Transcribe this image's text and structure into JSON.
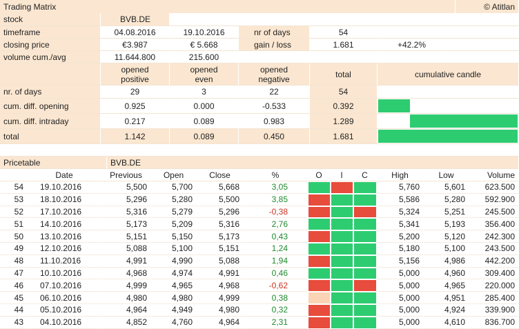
{
  "header": {
    "title": "Trading Matrix",
    "copyright": "© Atitlan"
  },
  "summary": {
    "stock_label": "stock",
    "stock_value": "BVB.DE",
    "timeframe_label": "timeframe",
    "start_date": "04.08.2016",
    "end_date": "19.10.2016",
    "nr_days_label": "nr of days",
    "nr_days_value": "54",
    "closing_label": "closing price",
    "closing_start": "€3.987",
    "closing_end": "€ 5.668",
    "gain_label": "gain / loss",
    "gain_value": "1.681",
    "gain_pct": "+42.2%",
    "volume_label": "volume cum./avg",
    "volume_cum": "11.644.800",
    "volume_avg": "215.600"
  },
  "matrix": {
    "col_positive": "opened positive",
    "col_even": "opened even",
    "col_negative": "opened negative",
    "col_total": "total",
    "col_candle": "cumulative candle",
    "rows": [
      {
        "label": "nr. of days",
        "positive": "29",
        "even": "3",
        "negative": "22",
        "total": "54"
      },
      {
        "label": "cum. diff. opening",
        "positive": "0.925",
        "even": "0.000",
        "negative": "-0.533",
        "total": "0.392"
      },
      {
        "label": "cum. diff. intraday",
        "positive": "0.217",
        "even": "0.089",
        "negative": "0.983",
        "total": "1.289"
      },
      {
        "label": "total",
        "positive": "1.142",
        "even": "0.089",
        "negative": "0.450",
        "total": "1.681"
      }
    ],
    "bar_color": "#2ecc71"
  },
  "pricetable": {
    "title": "Pricetable",
    "stock": "BVB.DE",
    "headers": {
      "date": "Date",
      "previous": "Previous",
      "open": "Open",
      "close": "Close",
      "pct": "%",
      "o": "O",
      "i": "I",
      "c": "C",
      "high": "High",
      "low": "Low",
      "volume": "Volume"
    },
    "rows": [
      {
        "n": "54",
        "date": "19.10.2016",
        "prev": "5,500",
        "open": "5,700",
        "close": "5,668",
        "pct": "3,05",
        "o": "g",
        "i": "r",
        "c": "g",
        "high": "5,760",
        "low": "5,601",
        "vol": "623.500"
      },
      {
        "n": "53",
        "date": "18.10.2016",
        "prev": "5,296",
        "open": "5,280",
        "close": "5,500",
        "pct": "3,85",
        "o": "r",
        "i": "g",
        "c": "g",
        "high": "5,586",
        "low": "5,280",
        "vol": "592.900"
      },
      {
        "n": "52",
        "date": "17.10.2016",
        "prev": "5,316",
        "open": "5,279",
        "close": "5,296",
        "pct": "-0,38",
        "o": "r",
        "i": "g",
        "c": "r",
        "high": "5,324",
        "low": "5,251",
        "vol": "245.500"
      },
      {
        "n": "51",
        "date": "14.10.2016",
        "prev": "5,173",
        "open": "5,209",
        "close": "5,316",
        "pct": "2,76",
        "o": "g",
        "i": "g",
        "c": "g",
        "high": "5,341",
        "low": "5,193",
        "vol": "356.400"
      },
      {
        "n": "50",
        "date": "13.10.2016",
        "prev": "5,151",
        "open": "5,150",
        "close": "5,173",
        "pct": "0,43",
        "o": "r",
        "i": "g",
        "c": "g",
        "high": "5,200",
        "low": "5,120",
        "vol": "242.300"
      },
      {
        "n": "49",
        "date": "12.10.2016",
        "prev": "5,088",
        "open": "5,100",
        "close": "5,151",
        "pct": "1,24",
        "o": "g",
        "i": "g",
        "c": "g",
        "high": "5,180",
        "low": "5,100",
        "vol": "243.500"
      },
      {
        "n": "48",
        "date": "11.10.2016",
        "prev": "4,991",
        "open": "4,990",
        "close": "5,088",
        "pct": "1,94",
        "o": "r",
        "i": "g",
        "c": "g",
        "high": "5,156",
        "low": "4,986",
        "vol": "442.200"
      },
      {
        "n": "47",
        "date": "10.10.2016",
        "prev": "4,968",
        "open": "4,974",
        "close": "4,991",
        "pct": "0,46",
        "o": "g",
        "i": "g",
        "c": "g",
        "high": "5,000",
        "low": "4,960",
        "vol": "309.400"
      },
      {
        "n": "46",
        "date": "07.10.2016",
        "prev": "4,999",
        "open": "4,965",
        "close": "4,968",
        "pct": "-0,62",
        "o": "r",
        "i": "g",
        "c": "r",
        "high": "5,000",
        "low": "4,965",
        "vol": "220.000"
      },
      {
        "n": "45",
        "date": "06.10.2016",
        "prev": "4,980",
        "open": "4,980",
        "close": "4,999",
        "pct": "0,38",
        "o": "e",
        "i": "g",
        "c": "g",
        "high": "5,000",
        "low": "4,951",
        "vol": "285.400"
      },
      {
        "n": "44",
        "date": "05.10.2016",
        "prev": "4,964",
        "open": "4,949",
        "close": "4,980",
        "pct": "0,32",
        "o": "r",
        "i": "g",
        "c": "g",
        "high": "5,000",
        "low": "4,924",
        "vol": "339.900"
      },
      {
        "n": "43",
        "date": "04.10.2016",
        "prev": "4,852",
        "open": "4,760",
        "close": "4,964",
        "pct": "2,31",
        "o": "r",
        "i": "g",
        "c": "g",
        "high": "5,000",
        "low": "4,610",
        "vol": "836.700"
      }
    ]
  }
}
